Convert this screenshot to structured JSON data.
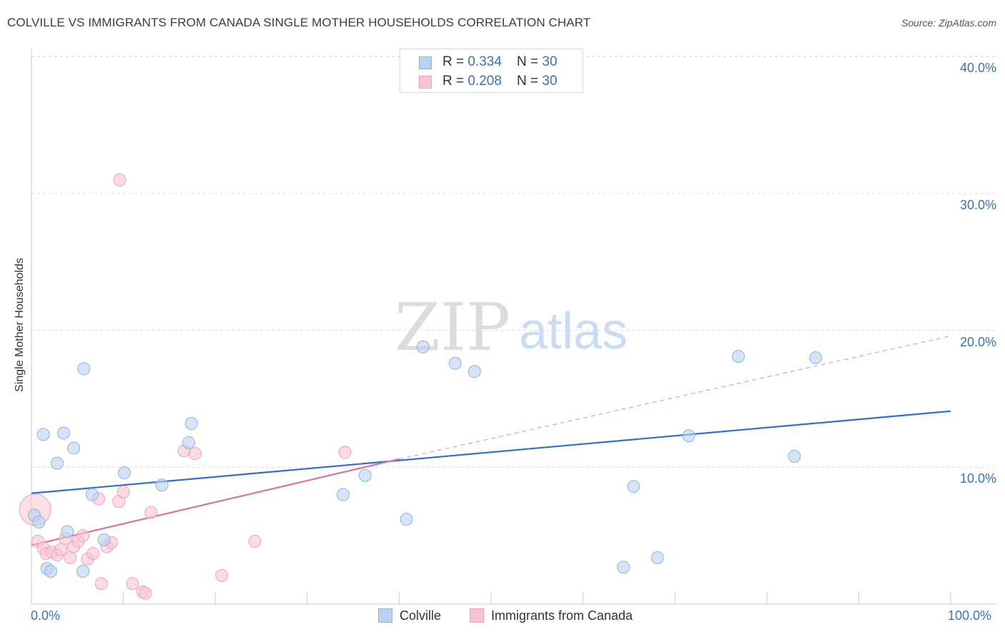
{
  "title": "COLVILLE VS IMMIGRANTS FROM CANADA SINGLE MOTHER HOUSEHOLDS CORRELATION CHART",
  "source": "Source: ZipAtlas.com",
  "colors": {
    "blue_fill": "#b9d2f2",
    "blue_stroke": "#8fb2e3",
    "blue_line": "#2f6fd1",
    "pink_fill": "#f8c4d3",
    "pink_stroke": "#eea3ba",
    "pink_line": "#e0709a",
    "grid": "#dddddd",
    "tick_text": "#3a70c5"
  },
  "legend_top": {
    "rows": [
      {
        "r_label": "R = ",
        "r_value": "0.334",
        "n_label": "N = ",
        "n_value": "30"
      },
      {
        "r_label": "R = ",
        "r_value": "0.208",
        "n_label": "N = ",
        "n_value": "30"
      }
    ]
  },
  "legend_bottom": {
    "colville": "Colville",
    "canada": "Immigrants from Canada"
  },
  "watermark": {
    "zip": "ZIP",
    "atlas": "atlas"
  },
  "chart_data": {
    "type": "scatter",
    "title": "COLVILLE VS IMMIGRANTS FROM CANADA SINGLE MOTHER HOUSEHOLDS CORRELATION CHART",
    "xlabel": "",
    "ylabel": "Single Mother Households",
    "xlim": [
      0,
      100
    ],
    "ylim": [
      0,
      42
    ],
    "x_tick_labels": [
      "0.0%",
      "100.0%"
    ],
    "y_ticks": [
      10,
      20,
      30,
      40
    ],
    "y_tick_labels": [
      "10.0%",
      "20.0%",
      "30.0%",
      "40.0%"
    ],
    "grid": true,
    "legend_position": "top-center",
    "series": [
      {
        "name": "Colville",
        "color": "#b9d2f2",
        "points": [
          [
            0.3,
            6.5
          ],
          [
            0.8,
            6.0
          ],
          [
            1.3,
            12.4
          ],
          [
            1.7,
            2.6
          ],
          [
            2.1,
            2.4
          ],
          [
            2.8,
            10.3
          ],
          [
            3.5,
            12.5
          ],
          [
            3.9,
            5.3
          ],
          [
            4.6,
            11.4
          ],
          [
            5.6,
            2.4
          ],
          [
            5.7,
            17.2
          ],
          [
            6.6,
            8.0
          ],
          [
            7.9,
            4.7
          ],
          [
            10.1,
            9.6
          ],
          [
            14.2,
            8.7
          ],
          [
            17.1,
            11.8
          ],
          [
            17.4,
            13.2
          ],
          [
            33.9,
            8.0
          ],
          [
            36.3,
            9.4
          ],
          [
            40.8,
            6.2
          ],
          [
            42.6,
            18.8
          ],
          [
            46.1,
            17.6
          ],
          [
            48.2,
            17.0
          ],
          [
            64.4,
            2.7
          ],
          [
            65.5,
            8.6
          ],
          [
            68.1,
            3.4
          ],
          [
            71.5,
            12.3
          ],
          [
            76.9,
            18.1
          ],
          [
            83.0,
            10.8
          ],
          [
            85.3,
            18.0
          ]
        ],
        "trend": {
          "x": [
            0,
            100
          ],
          "y": [
            8.1,
            14.1
          ]
        }
      },
      {
        "name": "Immigrants from Canada",
        "color": "#f8c4d3",
        "points": [
          [
            0.4,
            6.9
          ],
          [
            0.7,
            4.6
          ],
          [
            1.3,
            4.1
          ],
          [
            1.6,
            3.7
          ],
          [
            2.2,
            3.8
          ],
          [
            2.8,
            3.6
          ],
          [
            3.2,
            4.0
          ],
          [
            3.7,
            4.8
          ],
          [
            4.2,
            3.4
          ],
          [
            4.6,
            4.2
          ],
          [
            5.1,
            4.6
          ],
          [
            5.6,
            5.0
          ],
          [
            6.1,
            3.3
          ],
          [
            6.7,
            3.7
          ],
          [
            7.3,
            7.7
          ],
          [
            7.6,
            1.5
          ],
          [
            8.2,
            4.2
          ],
          [
            8.7,
            4.5
          ],
          [
            9.6,
            31.0
          ],
          [
            9.5,
            7.5
          ],
          [
            10.0,
            8.2
          ],
          [
            11.0,
            1.5
          ],
          [
            12.1,
            0.9
          ],
          [
            12.4,
            0.8
          ],
          [
            13.0,
            6.7
          ],
          [
            16.6,
            11.2
          ],
          [
            17.8,
            11.0
          ],
          [
            20.7,
            2.1
          ],
          [
            24.3,
            4.6
          ],
          [
            34.1,
            11.1
          ]
        ],
        "trend": {
          "x": [
            0,
            40
          ],
          "y": [
            4.3,
            10.6
          ]
        },
        "trend_extended": {
          "x": [
            40,
            100
          ],
          "y": [
            10.6,
            19.6
          ]
        }
      }
    ]
  }
}
